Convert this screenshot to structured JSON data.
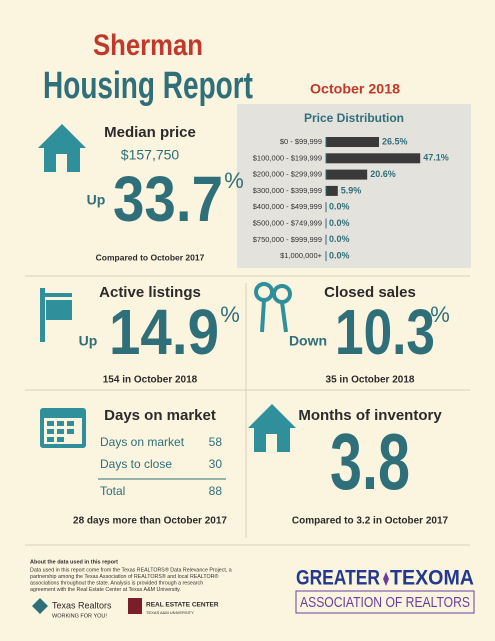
{
  "header": {
    "title": "Sherman",
    "subtitle": "Housing Report",
    "date": "October 2018"
  },
  "price_distribution": {
    "title": "Price Distribution",
    "categories": [
      "$0 - $99,999",
      "$100,000 - $199,999",
      "$200,000 - $299,999",
      "$300,000 - $399,999",
      "$400,000 - $499,999",
      "$500,000 - $749,999",
      "$750,000 - $999,999",
      "$1,000,000+"
    ],
    "values": [
      26.5,
      47.1,
      20.6,
      5.9,
      0,
      0,
      0,
      0
    ],
    "value_labels": [
      "26.5%",
      "47.1%",
      "20.6%",
      "5.9%",
      "0.0%",
      "0.0%",
      "0.0%",
      "0.0%"
    ]
  },
  "median_price": {
    "label": "Median price",
    "price": "$157,750",
    "direction": "Up",
    "change": "33.7",
    "unit": "%",
    "comparison": "Compared to October 2017"
  },
  "active_listings": {
    "label": "Active listings",
    "direction": "Up",
    "change": "14.9",
    "unit": "%",
    "note": "154 in October 2018"
  },
  "closed_sales": {
    "label": "Closed sales",
    "direction": "Down",
    "change": "10.3",
    "unit": "%",
    "note": "35 in October 2018"
  },
  "days_on_market": {
    "label": "Days on market",
    "rows": [
      [
        "Days on market",
        "58"
      ],
      [
        "Days to close",
        "30"
      ],
      [
        "Total",
        "88"
      ]
    ],
    "note": "28 days more than October 2017"
  },
  "months_of_inventory": {
    "label": "Months of inventory",
    "value": "3.8",
    "note": "Compared to 3.2 in October 2017"
  },
  "footer": {
    "heading": "About the data used in this report",
    "lines": [
      "Data used in this report come from the Texas REALTORS® Data Relevance Project, a",
      "partnership among the Texas Association of REALTORS® and local REALTOR®",
      "associations throughout the state. Analysis is provided through a research",
      "agreement with the Real Estate Center at Texas A&M University."
    ],
    "logo_texas": "Texas Realtors",
    "logo_texas_tagline": "WORKING FOR YOU!",
    "logo_center": "REAL ESTATE CENTER",
    "logo_center_sub": "TEXAS A&M UNIVERSITY",
    "logo_gtar_1": "GREATER",
    "logo_gtar_2": "TEXOMA",
    "logo_gtar_3": "ASSOCIATION OF REALTORS"
  }
}
